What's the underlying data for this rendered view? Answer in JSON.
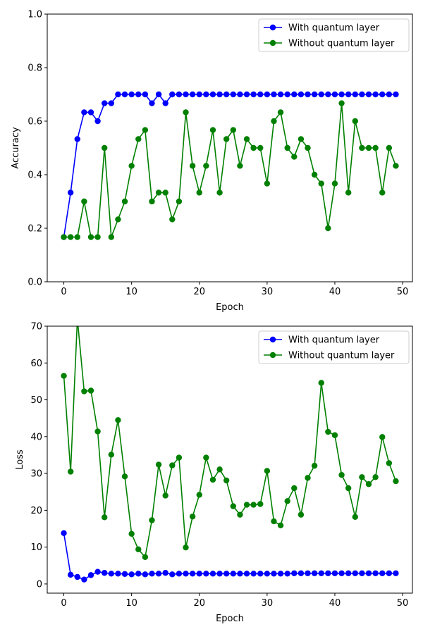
{
  "chart_data": [
    {
      "type": "line",
      "xlabel": "Epoch",
      "ylabel": "Accuracy",
      "xlim": [
        -2.45,
        51.45
      ],
      "ylim": [
        0,
        1.0
      ],
      "xticks": [
        "0",
        "10",
        "20",
        "30",
        "40",
        "50"
      ],
      "yticks": [
        "0.0",
        "0.2",
        "0.4",
        "0.6",
        "0.8",
        "1.0"
      ],
      "legend_position": "top-right",
      "x": [
        0,
        1,
        2,
        3,
        4,
        5,
        6,
        7,
        8,
        9,
        10,
        11,
        12,
        13,
        14,
        15,
        16,
        17,
        18,
        19,
        20,
        21,
        22,
        23,
        24,
        25,
        26,
        27,
        28,
        29,
        30,
        31,
        32,
        33,
        34,
        35,
        36,
        37,
        38,
        39,
        40,
        41,
        42,
        43,
        44,
        45,
        46,
        47,
        48,
        49
      ],
      "series": [
        {
          "name": "With quantum layer",
          "color": "#0000ff",
          "values": [
            0.167,
            0.333,
            0.533,
            0.633,
            0.633,
            0.6,
            0.667,
            0.667,
            0.7,
            0.7,
            0.7,
            0.7,
            0.7,
            0.667,
            0.7,
            0.667,
            0.7,
            0.7,
            0.7,
            0.7,
            0.7,
            0.7,
            0.7,
            0.7,
            0.7,
            0.7,
            0.7,
            0.7,
            0.7,
            0.7,
            0.7,
            0.7,
            0.7,
            0.7,
            0.7,
            0.7,
            0.7,
            0.7,
            0.7,
            0.7,
            0.7,
            0.7,
            0.7,
            0.7,
            0.7,
            0.7,
            0.7,
            0.7,
            0.7,
            0.7
          ]
        },
        {
          "name": "Without quantum layer",
          "color": "#008000",
          "values": [
            0.167,
            0.167,
            0.167,
            0.3,
            0.167,
            0.167,
            0.5,
            0.167,
            0.233,
            0.3,
            0.433,
            0.533,
            0.567,
            0.3,
            0.333,
            0.333,
            0.233,
            0.3,
            0.633,
            0.433,
            0.333,
            0.433,
            0.567,
            0.333,
            0.533,
            0.567,
            0.433,
            0.533,
            0.5,
            0.5,
            0.367,
            0.6,
            0.633,
            0.5,
            0.467,
            0.533,
            0.5,
            0.4,
            0.367,
            0.2,
            0.367,
            0.667,
            0.333,
            0.6,
            0.5,
            0.5,
            0.5,
            0.333,
            0.5,
            0.433
          ]
        }
      ]
    },
    {
      "type": "line",
      "xlabel": "Epoch",
      "ylabel": "Loss",
      "xlim": [
        -2.45,
        51.45
      ],
      "ylim": [
        -2.5,
        70
      ],
      "xticks": [
        "0",
        "10",
        "20",
        "30",
        "40",
        "50"
      ],
      "yticks": [
        "0",
        "10",
        "20",
        "30",
        "40",
        "50",
        "60",
        "70"
      ],
      "legend_position": "top-right",
      "x": [
        0,
        1,
        2,
        3,
        4,
        5,
        6,
        7,
        8,
        9,
        10,
        11,
        12,
        13,
        14,
        15,
        16,
        17,
        18,
        19,
        20,
        21,
        22,
        23,
        24,
        25,
        26,
        27,
        28,
        29,
        30,
        31,
        32,
        33,
        34,
        35,
        36,
        37,
        38,
        39,
        40,
        41,
        42,
        43,
        44,
        45,
        46,
        47,
        48,
        49
      ],
      "series": [
        {
          "name": "With quantum layer",
          "color": "#0000ff",
          "values": [
            13.8,
            2.5,
            1.9,
            1.2,
            2.4,
            3.3,
            3.0,
            2.8,
            2.8,
            2.7,
            2.6,
            2.8,
            2.6,
            2.8,
            2.8,
            3.0,
            2.6,
            2.8,
            2.8,
            2.8,
            2.8,
            2.8,
            2.8,
            2.8,
            2.8,
            2.8,
            2.8,
            2.8,
            2.8,
            2.8,
            2.8,
            2.8,
            2.8,
            2.8,
            2.9,
            2.9,
            2.9,
            2.9,
            2.9,
            2.9,
            2.9,
            2.9,
            2.9,
            2.9,
            2.9,
            2.9,
            2.9,
            2.9,
            2.9,
            2.9
          ]
        },
        {
          "name": "Without quantum layer",
          "color": "#008000",
          "values": [
            56.5,
            30.5,
            72.0,
            52.3,
            52.5,
            41.4,
            18.1,
            35.1,
            44.5,
            29.2,
            13.6,
            9.4,
            7.3,
            17.3,
            32.4,
            24.0,
            32.2,
            34.3,
            9.9,
            18.3,
            24.2,
            34.3,
            28.3,
            31.1,
            28.1,
            21.1,
            18.8,
            21.5,
            21.5,
            21.7,
            30.7,
            17.0,
            15.9,
            22.5,
            26.0,
            18.8,
            28.8,
            32.1,
            54.6,
            41.3,
            40.4,
            29.6,
            26.0,
            18.2,
            29.0,
            27.1,
            29.0,
            39.9,
            32.8,
            27.9
          ]
        }
      ]
    }
  ]
}
